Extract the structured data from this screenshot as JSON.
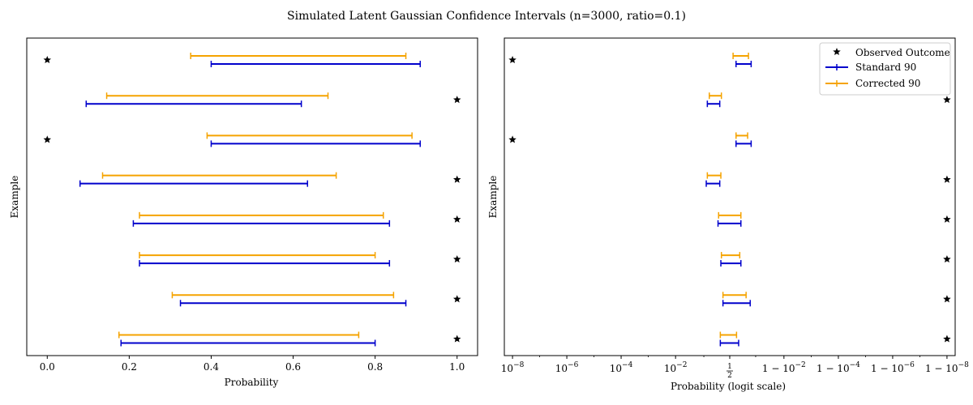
{
  "figure": {
    "title": "Simulated Latent Gaussian Confidence Intervals (n=3000, ratio=0.1)"
  },
  "legend": {
    "observed": "Observed Outcome",
    "standard": "Standard 90",
    "corrected": "Corrected 90"
  },
  "colors": {
    "standard": "#0000cc",
    "corrected": "#f5a300",
    "observed": "#000000",
    "axes": "#000000"
  },
  "chart_data": [
    {
      "type": "interval",
      "panel": "left",
      "title": "",
      "xlabel": "Probability",
      "ylabel": "Example",
      "xscale": "linear",
      "xlim": [
        -0.05,
        1.05
      ],
      "xticks": [
        0.0,
        0.2,
        0.4,
        0.6,
        0.8,
        1.0
      ],
      "xtick_labels": [
        "0.0",
        "0.2",
        "0.4",
        "0.6",
        "0.8",
        "1.0"
      ],
      "grid": false,
      "examples": [
        {
          "observed": 1,
          "standard": [
            0.18,
            0.8
          ],
          "corrected": [
            0.175,
            0.76
          ]
        },
        {
          "observed": 1,
          "standard": [
            0.325,
            0.875
          ],
          "corrected": [
            0.305,
            0.845
          ]
        },
        {
          "observed": 1,
          "standard": [
            0.225,
            0.835
          ],
          "corrected": [
            0.225,
            0.8
          ]
        },
        {
          "observed": 1,
          "standard": [
            0.21,
            0.835
          ],
          "corrected": [
            0.225,
            0.82
          ]
        },
        {
          "observed": 1,
          "standard": [
            0.08,
            0.635
          ],
          "corrected": [
            0.135,
            0.705
          ]
        },
        {
          "observed": 0,
          "standard": [
            0.4,
            0.91
          ],
          "corrected": [
            0.39,
            0.89
          ]
        },
        {
          "observed": 1,
          "standard": [
            0.095,
            0.62
          ],
          "corrected": [
            0.145,
            0.685
          ]
        },
        {
          "observed": 0,
          "standard": [
            0.4,
            0.91
          ],
          "corrected": [
            0.35,
            0.875
          ]
        }
      ]
    },
    {
      "type": "interval",
      "panel": "right",
      "title": "",
      "xlabel": "Probability (logit scale)",
      "ylabel": "Example",
      "xscale": "logit",
      "xlim": [
        5e-09,
        0.999999995
      ],
      "xticks": [
        1e-08,
        1e-06,
        0.0001,
        0.01,
        0.5,
        0.99,
        0.9999,
        0.999999,
        0.99999999
      ],
      "xtick_labels": [
        "10^-8",
        "10^-6",
        "10^-4",
        "10^-2",
        "1/2",
        "1 - 10^-2",
        "1 - 10^-4",
        "1 - 10^-6",
        "1 - 10^-8"
      ],
      "grid": false,
      "legend_position": "top-right",
      "examples": [
        {
          "observed": 1,
          "standard": [
            0.31,
            0.68
          ],
          "corrected": [
            0.31,
            0.64
          ]
        },
        {
          "observed": 1,
          "standard": [
            0.36,
            0.85
          ],
          "corrected": [
            0.36,
            0.8
          ]
        },
        {
          "observed": 1,
          "standard": [
            0.32,
            0.72
          ],
          "corrected": [
            0.33,
            0.7
          ]
        },
        {
          "observed": 1,
          "standard": [
            0.27,
            0.72
          ],
          "corrected": [
            0.28,
            0.72
          ]
        },
        {
          "observed": 1,
          "standard": [
            0.12,
            0.3
          ],
          "corrected": [
            0.13,
            0.32
          ]
        },
        {
          "observed": 0,
          "standard": [
            0.63,
            0.86
          ],
          "corrected": [
            0.63,
            0.82
          ]
        },
        {
          "observed": 1,
          "standard": [
            0.13,
            0.3
          ],
          "corrected": [
            0.15,
            0.33
          ]
        },
        {
          "observed": 0,
          "standard": [
            0.63,
            0.86
          ],
          "corrected": [
            0.57,
            0.83
          ]
        }
      ]
    }
  ]
}
